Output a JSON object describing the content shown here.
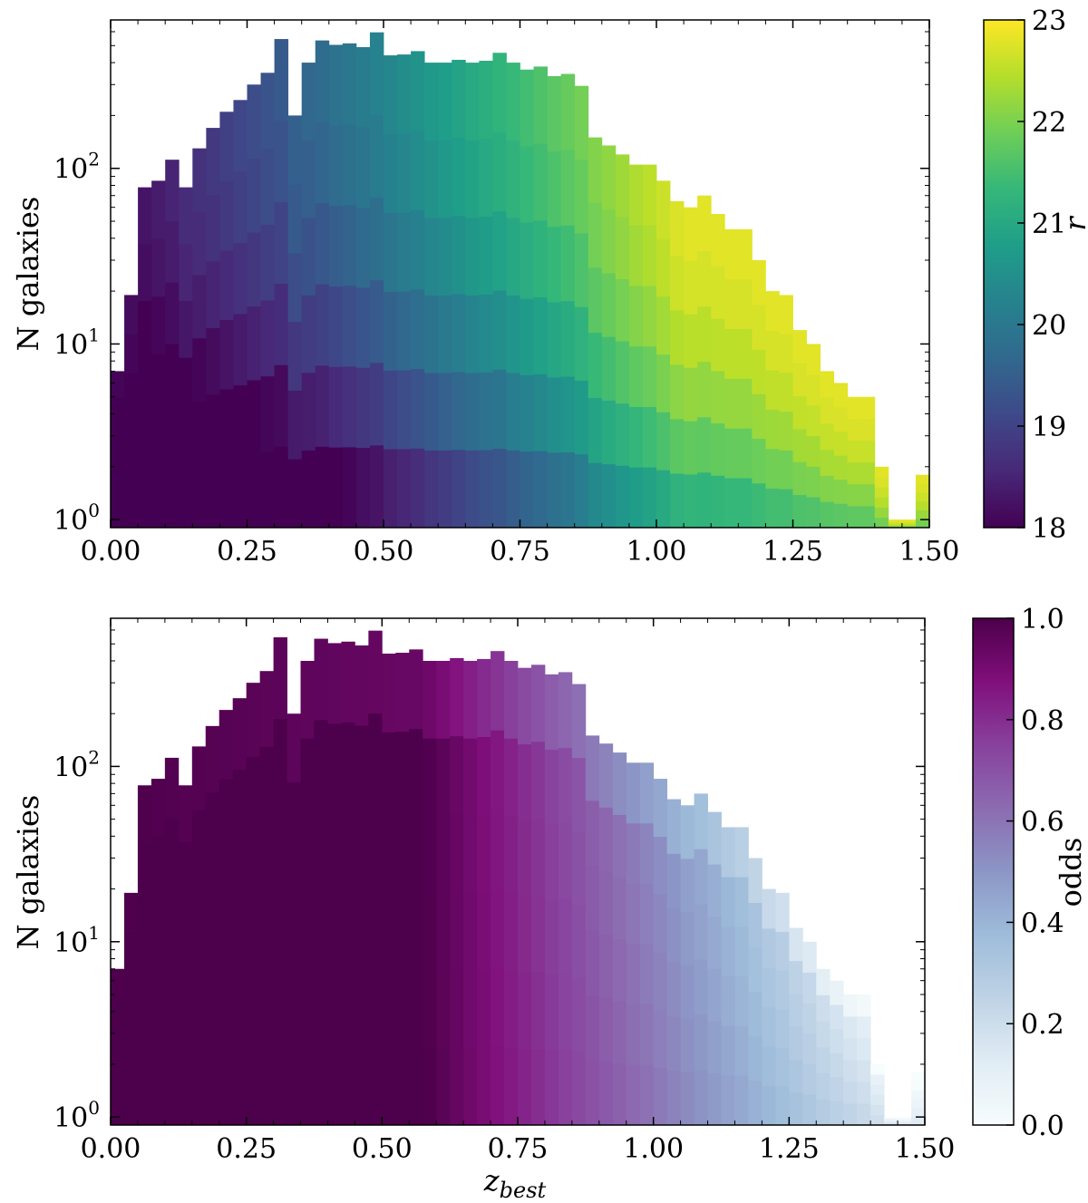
{
  "chart_data": [
    {
      "type": "bar",
      "name": "top-panel",
      "xlabel": "",
      "ylabel": "N galaxies",
      "yscale": "log",
      "xlim": [
        0.0,
        1.5
      ],
      "ylim": [
        0.9,
        700
      ],
      "xticks": [
        "0.00",
        "0.25",
        "0.50",
        "0.75",
        "1.00",
        "1.25",
        "1.50"
      ],
      "yticks": [
        {
          "base": "10",
          "exp": "0"
        },
        {
          "base": "10",
          "exp": "1"
        },
        {
          "base": "10",
          "exp": "2"
        }
      ],
      "bin_width": 0.025,
      "bin_starts": [
        0.0,
        0.025,
        0.05,
        0.075,
        0.1,
        0.125,
        0.15,
        0.175,
        0.2,
        0.225,
        0.25,
        0.275,
        0.3,
        0.325,
        0.35,
        0.375,
        0.4,
        0.425,
        0.45,
        0.475,
        0.5,
        0.525,
        0.55,
        0.575,
        0.6,
        0.625,
        0.65,
        0.675,
        0.7,
        0.725,
        0.75,
        0.775,
        0.8,
        0.825,
        0.85,
        0.875,
        0.9,
        0.925,
        0.95,
        0.975,
        1.0,
        1.025,
        1.05,
        1.075,
        1.1,
        1.125,
        1.15,
        1.175,
        1.2,
        1.225,
        1.25,
        1.275,
        1.3,
        1.325,
        1.35,
        1.375,
        1.4,
        1.425,
        1.45,
        1.475
      ],
      "counts": [
        7,
        19,
        78,
        85,
        112,
        78,
        130,
        170,
        210,
        245,
        300,
        350,
        545,
        200,
        400,
        535,
        505,
        515,
        490,
        595,
        440,
        445,
        465,
        400,
        400,
        415,
        400,
        410,
        455,
        400,
        365,
        380,
        335,
        345,
        295,
        150,
        135,
        120,
        105,
        105,
        85,
        65,
        60,
        70,
        55,
        45,
        45,
        30,
        20,
        19,
        12,
        10,
        7,
        6,
        5,
        5,
        2,
        1,
        1,
        1.8
      ],
      "colorbar": {
        "label": "r",
        "range": [
          18,
          23
        ],
        "ticks": [
          "18",
          "19",
          "20",
          "21",
          "22",
          "23"
        ],
        "colormap": "viridis",
        "colors": [
          "#440154",
          "#482878",
          "#3e4989",
          "#31688e",
          "#26828e",
          "#1f9e89",
          "#35b779",
          "#6ece58",
          "#b5de2b",
          "#fde725"
        ]
      }
    },
    {
      "type": "bar",
      "name": "bottom-panel",
      "xlabel": "z_best",
      "xlabel_main": "z",
      "xlabel_sub": "best",
      "ylabel": "N galaxies",
      "yscale": "log",
      "xlim": [
        0.0,
        1.5
      ],
      "ylim": [
        0.9,
        700
      ],
      "xticks": [
        "0.00",
        "0.25",
        "0.50",
        "0.75",
        "1.00",
        "1.25",
        "1.50"
      ],
      "yticks": [
        {
          "base": "10",
          "exp": "0"
        },
        {
          "base": "10",
          "exp": "1"
        },
        {
          "base": "10",
          "exp": "2"
        }
      ],
      "bin_width": 0.025,
      "bin_starts": [
        0.0,
        0.025,
        0.05,
        0.075,
        0.1,
        0.125,
        0.15,
        0.175,
        0.2,
        0.225,
        0.25,
        0.275,
        0.3,
        0.325,
        0.35,
        0.375,
        0.4,
        0.425,
        0.45,
        0.475,
        0.5,
        0.525,
        0.55,
        0.575,
        0.6,
        0.625,
        0.65,
        0.675,
        0.7,
        0.725,
        0.75,
        0.775,
        0.8,
        0.825,
        0.85,
        0.875,
        0.9,
        0.925,
        0.95,
        0.975,
        1.0,
        1.025,
        1.05,
        1.075,
        1.1,
        1.125,
        1.15,
        1.175,
        1.2,
        1.225,
        1.25,
        1.275,
        1.3,
        1.325,
        1.35,
        1.375,
        1.4,
        1.425,
        1.45,
        1.475
      ],
      "counts": [
        7,
        19,
        78,
        85,
        112,
        78,
        130,
        170,
        210,
        245,
        300,
        350,
        545,
        200,
        400,
        535,
        505,
        515,
        490,
        595,
        440,
        445,
        465,
        400,
        400,
        415,
        400,
        410,
        455,
        400,
        365,
        380,
        335,
        345,
        295,
        150,
        135,
        120,
        105,
        105,
        85,
        65,
        60,
        70,
        55,
        45,
        45,
        30,
        20,
        19,
        12,
        10,
        7,
        6,
        5,
        5,
        2,
        1,
        1,
        1.8
      ],
      "colorbar": {
        "label": "odds",
        "range": [
          0.0,
          1.0
        ],
        "ticks": [
          "0.0",
          "0.2",
          "0.4",
          "0.6",
          "0.8",
          "1.0"
        ],
        "colormap": "BuPu",
        "colors": [
          "#f7fcfd",
          "#e0ecf4",
          "#bfd3e6",
          "#9ebcda",
          "#8c96c6",
          "#8c6bb1",
          "#88419d",
          "#810f7c",
          "#4d004b"
        ]
      }
    }
  ]
}
